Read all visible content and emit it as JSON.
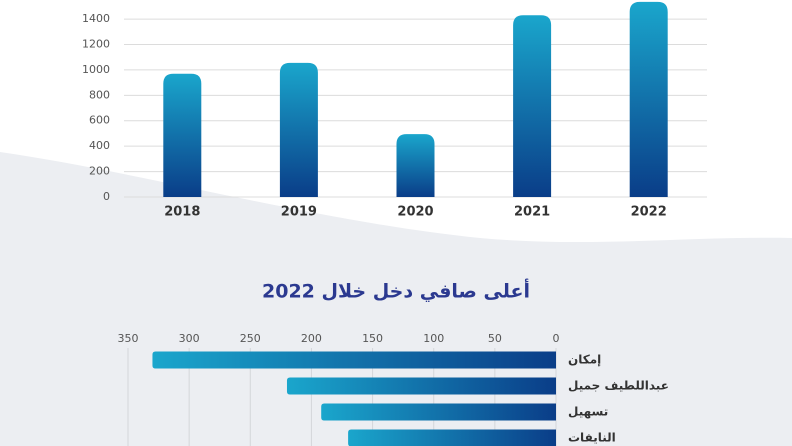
{
  "chart_data": [
    {
      "type": "bar",
      "categories": [
        "2018",
        "2019",
        "2020",
        "2021",
        "2022"
      ],
      "values": [
        970,
        1055,
        495,
        1430,
        1535
      ],
      "colors": [
        "#1aa6cc",
        "#0a3d88"
      ],
      "ylim": [
        0,
        1550
      ],
      "yticks": [
        0,
        200,
        400,
        600,
        800,
        1000,
        1200,
        1400
      ],
      "grid": true
    },
    {
      "type": "hbar",
      "title": "أعلى صافي دخل خلال 2022",
      "categories": [
        "إمكان",
        "عبداللطيف جميل",
        "تسهيل",
        "النايفات"
      ],
      "values": [
        330,
        220,
        192,
        170
      ],
      "colors": [
        "#1aa6cc",
        "#0a3d88"
      ],
      "xlim": [
        0,
        350
      ],
      "xticks": [
        0,
        50,
        100,
        150,
        200,
        250,
        300,
        350
      ],
      "grid": true
    }
  ]
}
